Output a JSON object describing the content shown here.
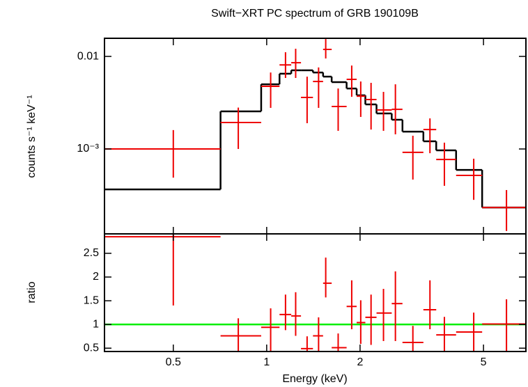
{
  "chart_data": [
    {
      "type": "spectrum",
      "title": "Swift−XRT PC spectrum of GRB 190109B",
      "ylabel": "counts s⁻¹ keV⁻¹",
      "xlog": true,
      "ylog": true,
      "xlim": [
        0.3,
        6.85
      ],
      "ylim": [
        0.000121,
        0.0157
      ],
      "xticks": [
        0.5,
        1,
        2,
        5
      ],
      "yticks": [
        {
          "value": 0.001,
          "label": "10⁻³"
        },
        0.01
      ],
      "bins": [
        0.3,
        0.71,
        0.96,
        1.1,
        1.2,
        1.29,
        1.41,
        1.52,
        1.62,
        1.81,
        1.95,
        2.08,
        2.26,
        2.53,
        2.74,
        3.2,
        3.52,
        4.08,
        4.95,
        6.85
      ],
      "x": [
        0.5,
        0.81,
        1.03,
        1.15,
        1.24,
        1.35,
        1.47,
        1.55,
        1.7,
        1.88,
        2.01,
        2.17,
        2.38,
        2.6,
        2.96,
        3.36,
        3.74,
        4.65,
        5.93
      ],
      "data": {
        "color": "#ee0000",
        "values": [
          0.001,
          0.00193,
          0.00475,
          0.0081,
          0.00855,
          0.0036,
          0.00536,
          0.0119,
          0.00288,
          0.00565,
          0.00372,
          0.00342,
          0.00264,
          0.00268,
          0.00092,
          0.00162,
          0.00077,
          0.000518,
          0.000233
        ],
        "ylow": [
          0.00049,
          0.001,
          0.00278,
          0.00585,
          0.00585,
          0.0019,
          0.00278,
          0.0095,
          0.00157,
          0.00366,
          0.00222,
          0.00162,
          0.00157,
          0.00144,
          0.000467,
          0.0009,
          0.0004,
          0.000282,
          0.00013
        ],
        "yhigh": [
          0.0016,
          0.0028,
          0.0067,
          0.0111,
          0.0121,
          0.00605,
          0.0076,
          0.0154,
          0.0045,
          0.00797,
          0.00536,
          0.00518,
          0.00414,
          0.005,
          0.00139,
          0.00214,
          0.00117,
          0.000785,
          0.00036
        ]
      },
      "model": {
        "color": "#000000",
        "values": [
          0.000366,
          0.00255,
          0.005,
          0.0065,
          0.00708,
          0.00708,
          0.0067,
          0.00605,
          0.00527,
          0.0045,
          0.0038,
          0.00303,
          0.00242,
          0.00207,
          0.00154,
          0.00121,
          0.000966,
          0.000594,
          0.000233
        ]
      }
    },
    {
      "type": "ratio",
      "xlabel": "Energy (keV)",
      "ylabel": "ratio",
      "xlog": true,
      "ylog": false,
      "xlim": [
        0.3,
        6.85
      ],
      "ylim": [
        0.43,
        2.91
      ],
      "xticks": [
        0.5,
        1,
        2,
        5
      ],
      "yticks": [
        0.5,
        1,
        1.5,
        2,
        2.5
      ],
      "bins": [
        0.3,
        0.71,
        0.96,
        1.1,
        1.2,
        1.29,
        1.41,
        1.52,
        1.62,
        1.81,
        1.95,
        2.08,
        2.26,
        2.53,
        2.74,
        3.2,
        3.52,
        4.08,
        4.95,
        6.85
      ],
      "x": [
        0.5,
        0.81,
        1.03,
        1.15,
        1.24,
        1.35,
        1.47,
        1.55,
        1.7,
        1.88,
        2.01,
        2.17,
        2.38,
        2.6,
        2.96,
        3.36,
        3.74,
        4.65,
        5.93
      ],
      "data": {
        "color": "#ee0000",
        "values": [
          2.85,
          0.76,
          0.94,
          1.21,
          1.18,
          0.49,
          0.76,
          1.87,
          0.51,
          1.38,
          1.04,
          1.15,
          1.24,
          1.44,
          0.62,
          1.31,
          0.78,
          0.84,
          1.01
        ],
        "ylow": [
          1.4,
          0.38,
          0.4,
          0.88,
          0.76,
          0.3,
          0.4,
          1.57,
          0.3,
          0.9,
          0.59,
          0.57,
          0.65,
          0.65,
          0.4,
          0.9,
          0.4,
          0.4,
          0.4
        ],
        "yhigh": [
          3.0,
          1.13,
          1.34,
          1.63,
          1.68,
          0.75,
          1.15,
          2.41,
          0.81,
          1.93,
          1.51,
          1.63,
          1.75,
          2.12,
          0.97,
          1.93,
          1.16,
          1.25,
          1.53
        ]
      },
      "reference": {
        "value": 1,
        "color": "#00ee00"
      }
    }
  ]
}
